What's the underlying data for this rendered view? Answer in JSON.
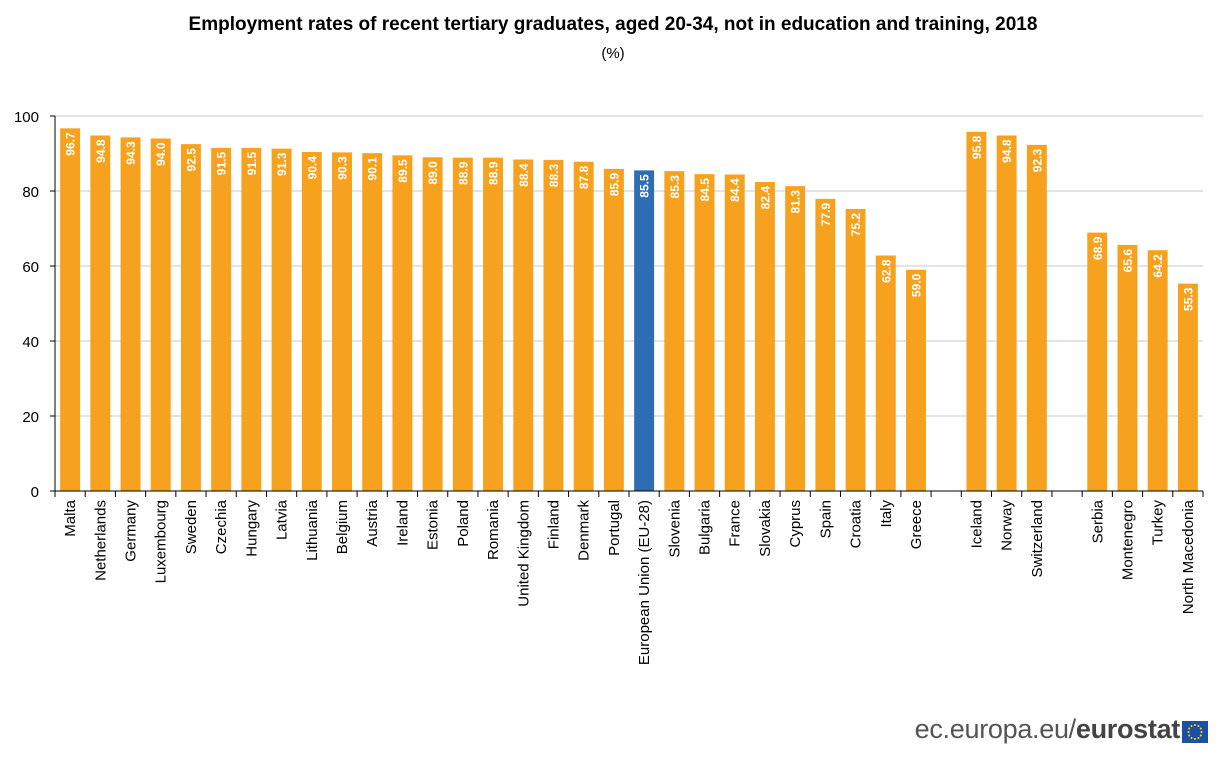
{
  "chart_data": {
    "type": "bar",
    "title": "Employment rates of recent tertiary graduates, aged 20-34, not in education and training, 2018",
    "subtitle": "(%)",
    "ylim": [
      0,
      100
    ],
    "yticks": [
      0,
      20,
      40,
      60,
      80,
      100
    ],
    "grid": true,
    "categories": [
      "Malta",
      "Netherlands",
      "Germany",
      "Luxembourg",
      "Sweden",
      "Czechia",
      "Hungary",
      "Latvia",
      "Lithuania",
      "Belgium",
      "Austria",
      "Ireland",
      "Estonia",
      "Poland",
      "Romania",
      "United Kingdom",
      "Finland",
      "Denmark",
      "Portugal",
      "European Union (EU-28)",
      "Slovenia",
      "Bulgaria",
      "France",
      "Slovakia",
      "Cyprus",
      "Spain",
      "Croatia",
      "Italy",
      "Greece",
      "",
      "Iceland",
      "Norway",
      "Switzerland",
      "",
      "Serbia",
      "Montenegro",
      "Turkey",
      "North Macedonia"
    ],
    "values": [
      96.7,
      94.8,
      94.3,
      94.0,
      92.5,
      91.5,
      91.5,
      91.3,
      90.4,
      90.3,
      90.1,
      89.5,
      89.0,
      88.9,
      88.9,
      88.4,
      88.3,
      87.8,
      85.9,
      85.5,
      85.3,
      84.5,
      84.4,
      82.4,
      81.3,
      77.9,
      75.2,
      62.8,
      59.0,
      null,
      95.8,
      94.8,
      92.3,
      null,
      68.9,
      65.6,
      64.2,
      55.3
    ],
    "value_labels": [
      "96.7",
      "94.8",
      "94.3",
      "94.0",
      "92.5",
      "91.5",
      "91.5",
      "91.3",
      "90.4",
      "90.3",
      "90.1",
      "89.5",
      "89.0",
      "88.9",
      "88.9",
      "88.4",
      "88.3",
      "87.8",
      "85.9",
      "85.5",
      "85.3",
      "84.5",
      "84.4",
      "82.4",
      "81.3",
      "77.9",
      "75.2",
      "62.8",
      "59.0",
      "",
      "95.8",
      "94.8",
      "92.3",
      "",
      "68.9",
      "65.6",
      "64.2",
      "55.3"
    ],
    "highlight_category": "European Union (EU-28)",
    "colors": {
      "bar": "#f6a21e",
      "highlight": "#2e6db4",
      "grid": "#c8c8c8",
      "axis": "#000000"
    }
  },
  "footer": {
    "domain": "ec.europa.eu/",
    "brand": "eurostat"
  }
}
